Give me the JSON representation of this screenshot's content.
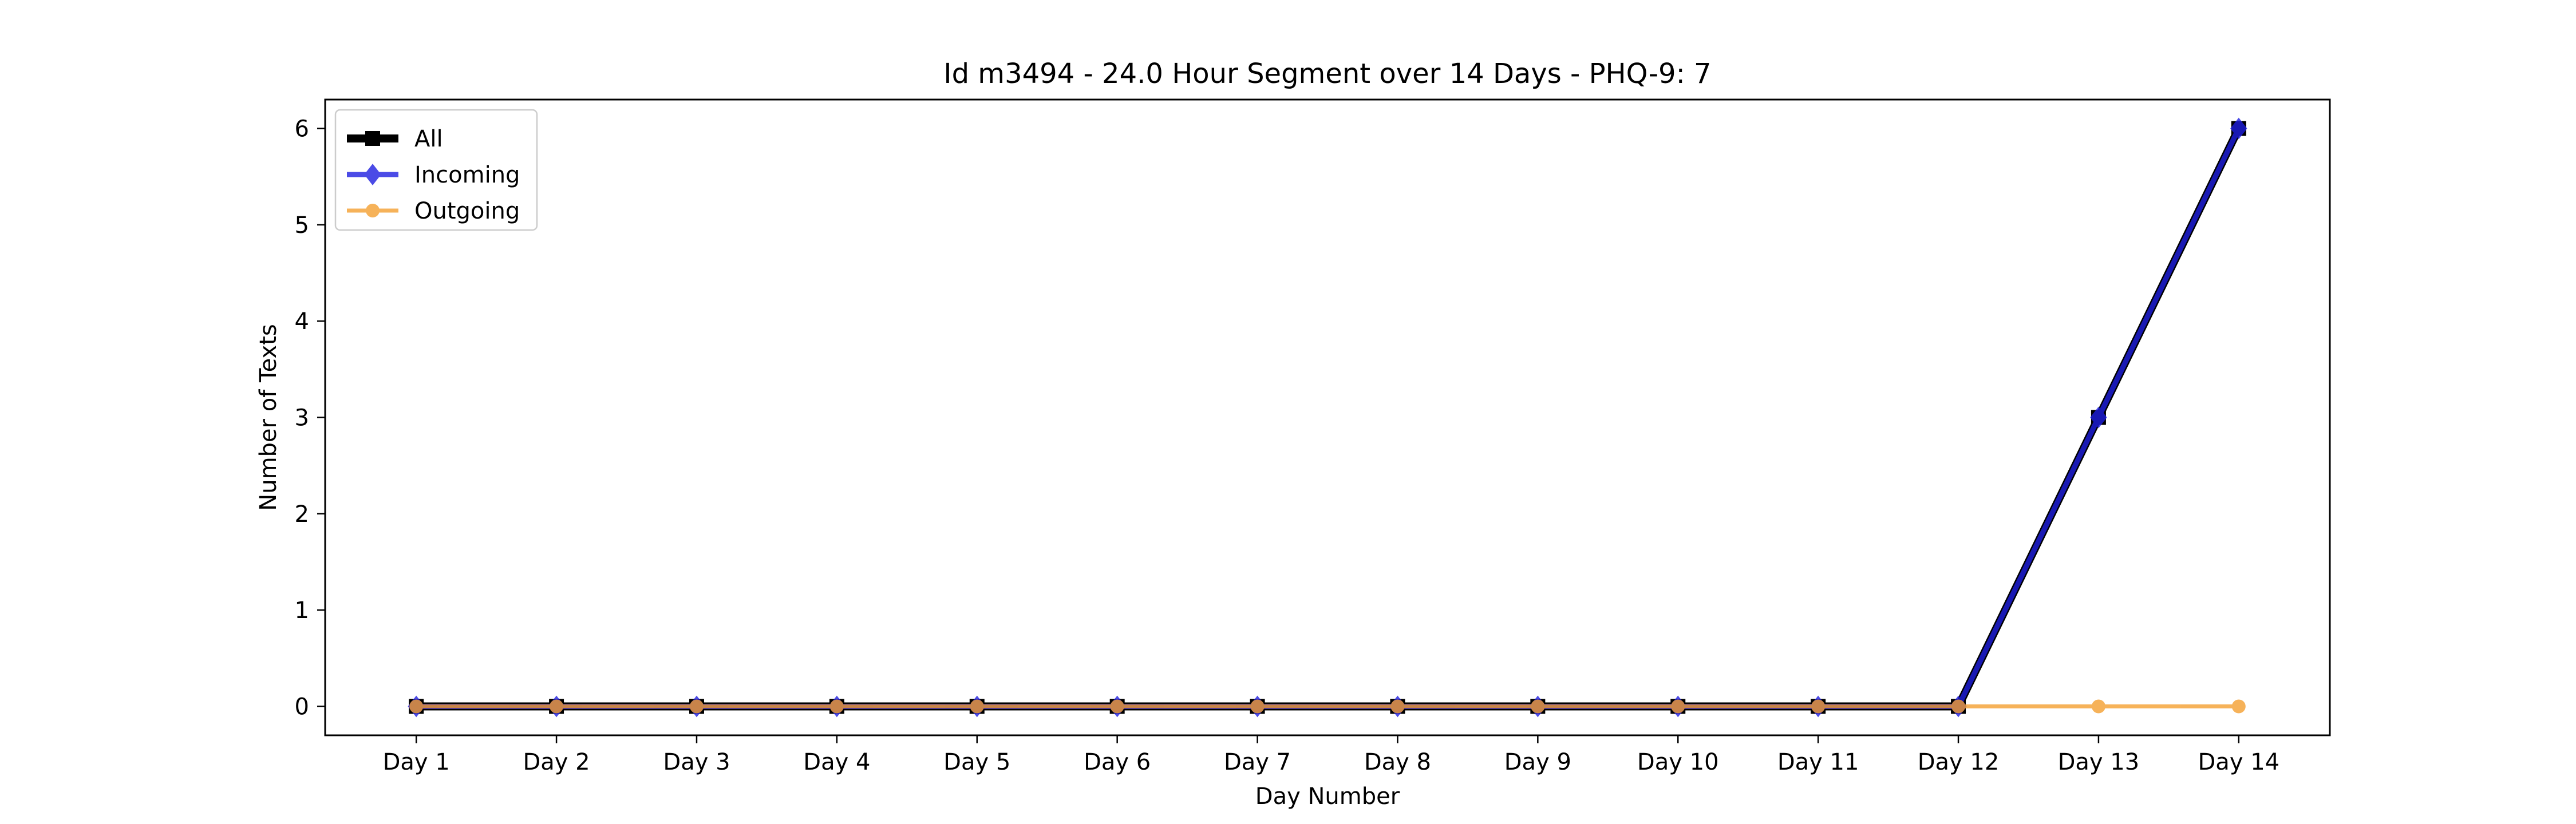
{
  "chart_data": {
    "type": "line",
    "title": "Id m3494 - 24.0 Hour Segment over 14 Days - PHQ-9: 7",
    "xlabel": "Day Number",
    "ylabel": "Number of Texts",
    "categories": [
      "Day 1",
      "Day 2",
      "Day 3",
      "Day 4",
      "Day 5",
      "Day 6",
      "Day 7",
      "Day 8",
      "Day 9",
      "Day 10",
      "Day 11",
      "Day 12",
      "Day 13",
      "Day 14"
    ],
    "ylim": [
      -0.3,
      6.3
    ],
    "yticks": [
      0,
      1,
      2,
      3,
      4,
      5,
      6
    ],
    "grid": false,
    "legend_position": "top-left",
    "series": [
      {
        "name": "All",
        "color": "#000000",
        "marker": "square",
        "values": [
          0,
          0,
          0,
          0,
          0,
          0,
          0,
          0,
          0,
          0,
          0,
          0,
          3,
          6
        ]
      },
      {
        "name": "Incoming",
        "color": "#1f1fe0",
        "marker": "diamond",
        "values": [
          0,
          0,
          0,
          0,
          0,
          0,
          0,
          0,
          0,
          0,
          0,
          0,
          3,
          6
        ]
      },
      {
        "name": "Outgoing",
        "color": "#f5a030",
        "marker": "circle",
        "values": [
          0,
          0,
          0,
          0,
          0,
          0,
          0,
          0,
          0,
          0,
          0,
          0,
          0,
          0
        ]
      }
    ]
  }
}
